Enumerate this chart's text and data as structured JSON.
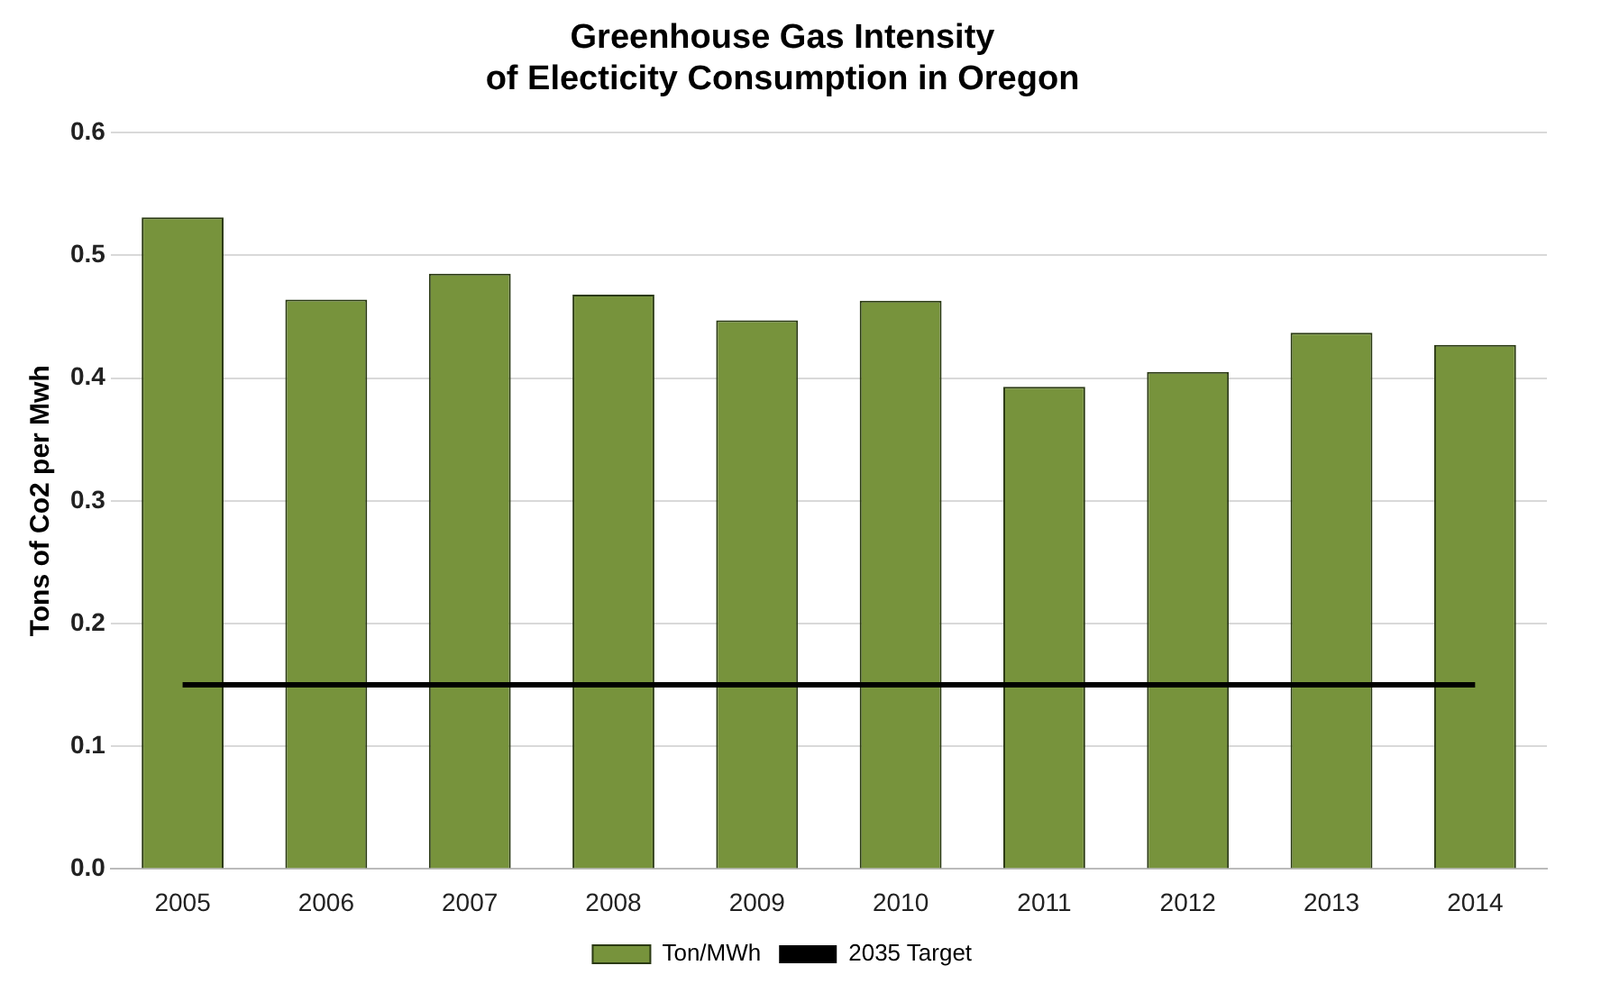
{
  "chart_data": {
    "type": "bar",
    "title": "Greenhouse Gas Intensity\nof Electicity Consumption in Oregon",
    "ylabel": "Tons of Co2 per Mwh",
    "categories": [
      "2005",
      "2006",
      "2007",
      "2008",
      "2009",
      "2010",
      "2011",
      "2012",
      "2013",
      "2014"
    ],
    "series": [
      {
        "name": "Ton/MWh",
        "color": "#77933c",
        "values": [
          0.531,
          0.464,
          0.485,
          0.468,
          0.447,
          0.463,
          0.393,
          0.405,
          0.437,
          0.427
        ]
      },
      {
        "name": "2035 Target",
        "type": "line",
        "color": "#000000",
        "values": [
          0.15,
          0.15,
          0.15,
          0.15,
          0.15,
          0.15,
          0.15,
          0.15,
          0.15,
          0.15
        ]
      }
    ],
    "ylim": [
      0,
      0.6
    ],
    "yticks": [
      {
        "value": 0,
        "label": "0.0"
      },
      0.1,
      0.2,
      0.3,
      0.4,
      0.5,
      0.6
    ],
    "grid": "y",
    "legend": "bottom",
    "marker": "none",
    "line_style": "solid"
  }
}
